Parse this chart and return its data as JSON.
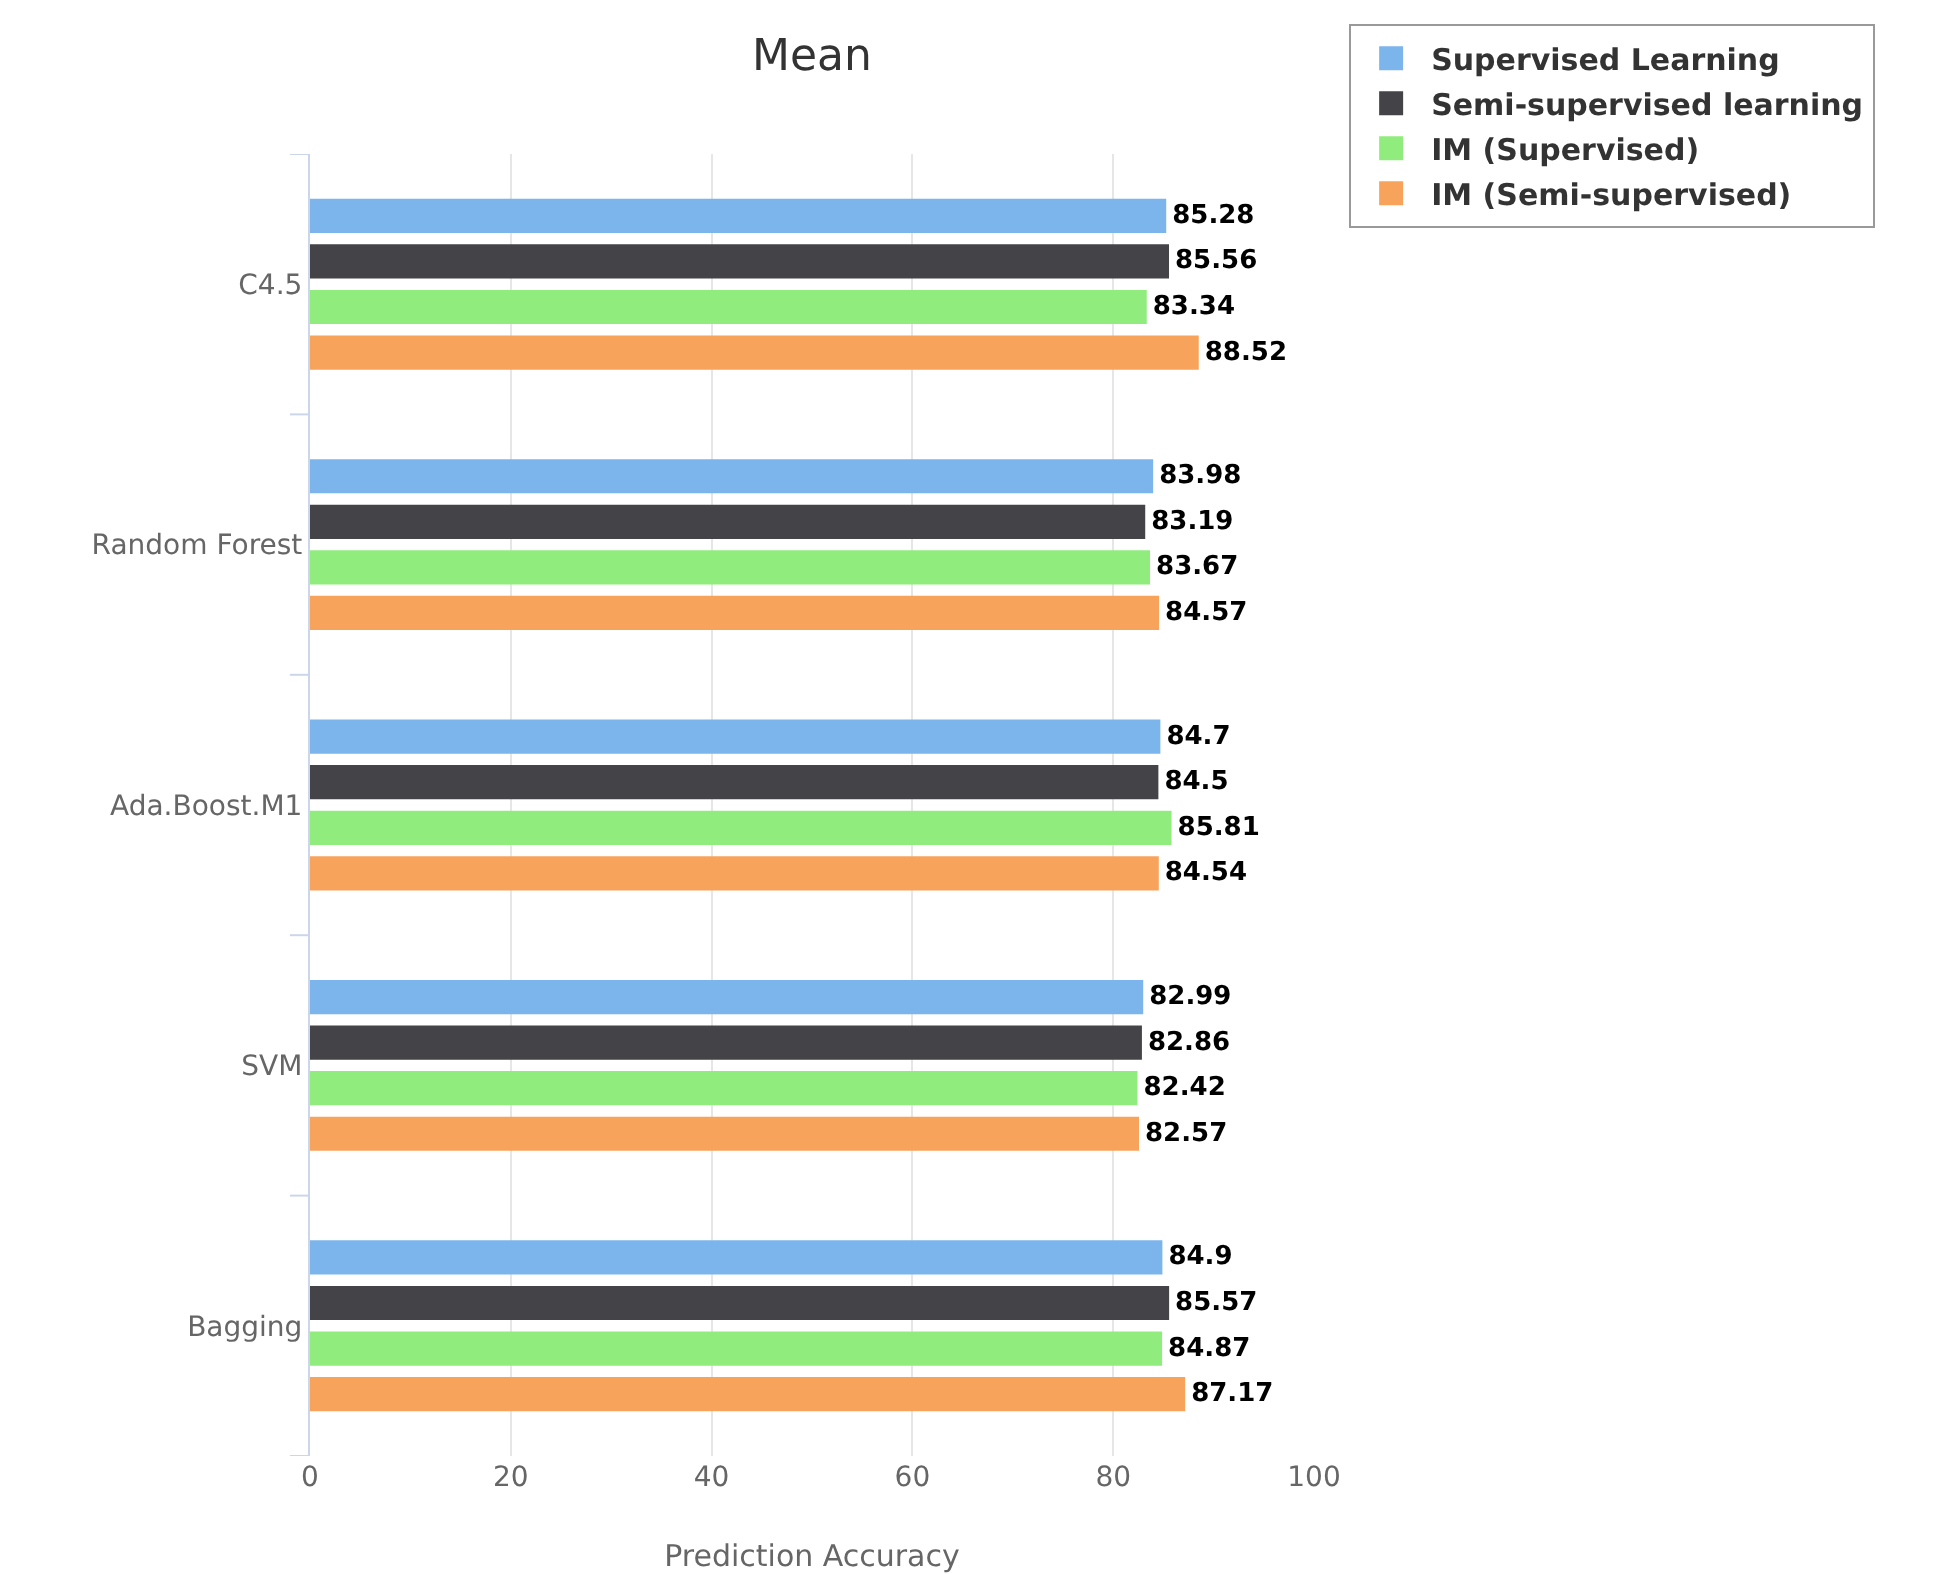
{
  "chart_data": {
    "type": "bar",
    "orientation": "horizontal",
    "title": "Mean",
    "xlabel": "Prediction Accuracy",
    "categories": [
      "C4.5",
      "Random Forest",
      "Ada.Boost.M1",
      "SVM",
      "Bagging"
    ],
    "series": [
      {
        "name": "Supervised Learning",
        "color": "#7cb5ec",
        "values": [
          85.28,
          83.98,
          84.7,
          82.99,
          84.9
        ]
      },
      {
        "name": "Semi-supervised learning",
        "color": "#434348",
        "values": [
          85.56,
          83.19,
          84.5,
          82.86,
          85.57
        ]
      },
      {
        "name": "IM (Supervised)",
        "color": "#90ed7d",
        "values": [
          83.34,
          83.67,
          85.81,
          82.42,
          84.87
        ]
      },
      {
        "name": "IM (Semi-supervised)",
        "color": "#f7a35c",
        "values": [
          88.52,
          84.57,
          84.54,
          82.57,
          87.17
        ]
      }
    ],
    "xlim": [
      0,
      100
    ],
    "xticks": [
      0,
      20,
      40,
      60,
      80,
      100
    ],
    "grid": "x",
    "legend": "top right",
    "data_labels": true
  }
}
